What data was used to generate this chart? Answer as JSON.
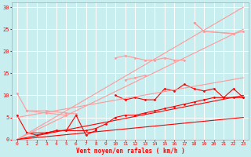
{
  "title": "",
  "xlabel": "Vent moyen/en rafales ( km/h )",
  "ylabel": "",
  "bg_color": "#c8eef0",
  "grid_color": "#ffffff",
  "xlim": [
    -0.5,
    23.5
  ],
  "ylim": [
    0,
    31
  ],
  "yticks": [
    0,
    5,
    10,
    15,
    20,
    25,
    30
  ],
  "xticks": [
    0,
    1,
    2,
    3,
    4,
    5,
    6,
    7,
    8,
    9,
    10,
    11,
    12,
    13,
    14,
    15,
    16,
    17,
    18,
    19,
    20,
    21,
    22,
    23
  ],
  "series": [
    {
      "x": [
        0,
        1,
        3,
        5,
        6
      ],
      "y": [
        10.5,
        6.5,
        6.5,
        6.0,
        5.8
      ],
      "color": "#ff9999",
      "lw": 0.8,
      "marker": "D",
      "ms": 1.5
    },
    {
      "x": [
        0,
        1,
        3,
        4,
        5,
        6,
        7,
        8
      ],
      "y": [
        5.5,
        1.5,
        1.5,
        2.0,
        2.0,
        5.5,
        1.0,
        2.0
      ],
      "color": "#ff0000",
      "lw": 0.8,
      "marker": "D",
      "ms": 1.5
    },
    {
      "x": [
        10,
        11,
        12,
        13,
        14,
        15,
        16,
        17
      ],
      "y": [
        18.5,
        19.0,
        18.5,
        18.0,
        18.0,
        18.5,
        18.0,
        18.0
      ],
      "color": "#ff9999",
      "lw": 0.8,
      "marker": "D",
      "ms": 1.5
    },
    {
      "x": [
        10,
        11,
        12,
        13,
        14,
        15,
        16,
        17,
        18,
        19,
        20,
        21,
        22,
        23
      ],
      "y": [
        10.0,
        9.0,
        9.5,
        9.0,
        9.0,
        11.5,
        11.0,
        12.5,
        11.5,
        11.0,
        11.5,
        9.5,
        11.5,
        9.5
      ],
      "color": "#ff0000",
      "lw": 0.8,
      "marker": "D",
      "ms": 1.5
    },
    {
      "x": [
        18,
        19,
        22
      ],
      "y": [
        26.5,
        24.5,
        24.0
      ],
      "color": "#ff9999",
      "lw": 0.8,
      "marker": "D",
      "ms": 1.5
    },
    {
      "x": [
        18,
        19,
        22,
        23
      ],
      "y": [
        26.5,
        24.5,
        24.0,
        24.5
      ],
      "color": "#ff9999",
      "lw": 0.8,
      "marker": "D",
      "ms": 1.5
    },
    {
      "x": [
        1,
        2,
        3,
        4,
        5,
        7,
        8,
        9,
        10,
        11,
        12,
        13,
        14,
        15,
        16,
        17,
        18,
        19,
        20,
        21,
        22,
        23
      ],
      "y": [
        1.5,
        1.0,
        1.5,
        2.0,
        2.0,
        2.0,
        2.5,
        3.5,
        5.0,
        5.5,
        5.5,
        6.0,
        6.5,
        7.0,
        7.5,
        8.0,
        8.5,
        9.0,
        9.5,
        9.5,
        9.5,
        9.5
      ],
      "color": "#ff0000",
      "lw": 0.8,
      "marker": "D",
      "ms": 1.5
    },
    {
      "x": [
        1,
        3,
        5
      ],
      "y": [
        6.5,
        6.0,
        5.5
      ],
      "color": "#ff9999",
      "lw": 0.8,
      "marker": "D",
      "ms": 1.5
    },
    {
      "x": [
        11,
        12,
        13
      ],
      "y": [
        13.5,
        14.0,
        14.5
      ],
      "color": "#ff9999",
      "lw": 0.8,
      "marker": "D",
      "ms": 1.5
    },
    {
      "x": [
        0,
        23
      ],
      "y": [
        0,
        30
      ],
      "color": "#ff9999",
      "lw": 0.8,
      "marker": null,
      "ms": 0
    },
    {
      "x": [
        0,
        23
      ],
      "y": [
        0,
        10
      ],
      "color": "#ff0000",
      "lw": 0.8,
      "marker": null,
      "ms": 0
    },
    {
      "x": [
        0,
        23
      ],
      "y": [
        5,
        14
      ],
      "color": "#ff9999",
      "lw": 0.8,
      "marker": null,
      "ms": 0
    },
    {
      "x": [
        0,
        23
      ],
      "y": [
        0,
        25
      ],
      "color": "#ff9999",
      "lw": 0.8,
      "marker": null,
      "ms": 0
    },
    {
      "x": [
        0,
        23
      ],
      "y": [
        0,
        5
      ],
      "color": "#ff0000",
      "lw": 0.8,
      "marker": null,
      "ms": 0
    }
  ]
}
